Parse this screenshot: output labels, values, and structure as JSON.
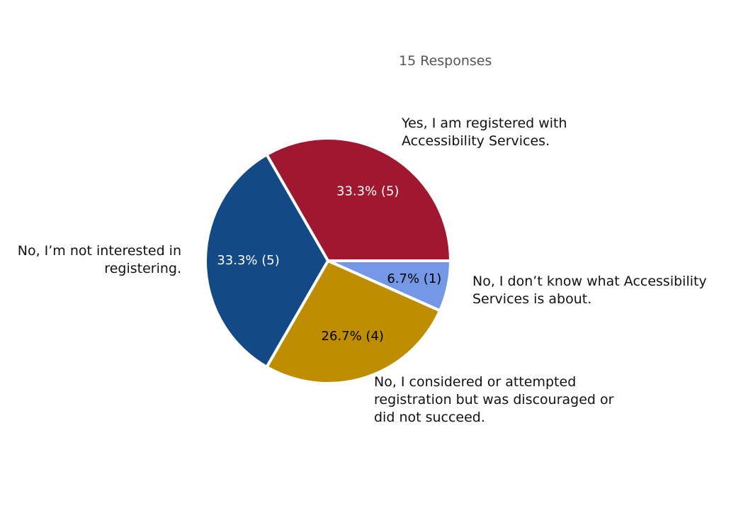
{
  "chart_data": {
    "type": "pie",
    "title": "15 Responses",
    "total": 15,
    "slices": [
      {
        "label_lines": [
          "Yes, I am registered with",
          "Accessibility Services."
        ],
        "value": 5,
        "percent_label": "33.3% (5)",
        "color": "#A0182F",
        "text_color": "#ffffff"
      },
      {
        "label_lines": [
          "No, I don’t know what Accessibility",
          "Services is about."
        ],
        "value": 1,
        "percent_label": "6.7% (1)",
        "color": "#7497E6",
        "text_color": "#000000"
      },
      {
        "label_lines": [
          "No, I considered or attempted",
          "registration but was discouraged or",
          "did not succeed."
        ],
        "value": 4,
        "percent_label": "26.7% (4)",
        "color": "#BE8E00",
        "text_color": "#000000"
      },
      {
        "label_lines": [
          "No, I’m not interested in",
          "registering."
        ],
        "value": 5,
        "percent_label": "33.3% (5)",
        "color": "#134A85",
        "text_color": "#ffffff"
      }
    ]
  }
}
